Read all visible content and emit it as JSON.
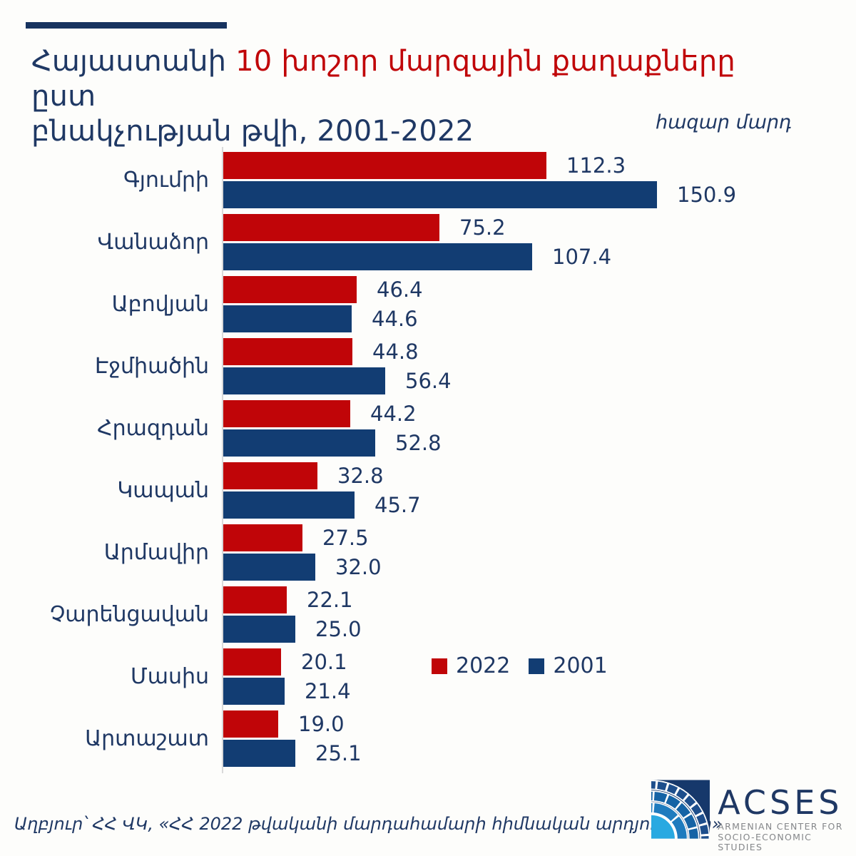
{
  "title": {
    "part1": "Հայաստանի ",
    "part2": "10 խոշոր մարզային քաղաքները ",
    "part3": "ըստ",
    "line2": "բնակչության թվի, 2001-2022"
  },
  "unit_label": "հազար մարդ",
  "legend": {
    "series_2022": "2022",
    "series_2001": "2001"
  },
  "source": "Աղբյուր՝ ՀՀ ՎԿ, «ՀՀ 2022 թվականի մարդահամարի հիմնական արդյունքներ»",
  "logo": {
    "name": "ACSES",
    "subtitle_line1": "ARMENIAN CENTER FOR",
    "subtitle_line2": "SOCIO-ECONOMIC STUDIES"
  },
  "colors": {
    "red": "#C00508",
    "navy_bar": "#123D73",
    "navy_text": "#1F3864",
    "axis_line": "#D9D9D9",
    "background": "#FDFDFB",
    "logo_light_blue": "#29A9E1",
    "logo_mid_blue": "#1E7BBE",
    "logo_deep_blue": "#1563A5",
    "logo_navy": "#16386B",
    "logo_subtitle_gray": "#85878A"
  },
  "chart_data": {
    "type": "bar",
    "orientation": "horizontal",
    "title": "Հայաստանի 10 խոշոր մարզային քաղաքները ըստ բնակչության թվի, 2001-2022",
    "unit": "հազար մարդ",
    "categories": [
      "Գյումրի",
      "Վանաձոր",
      "Աբովյան",
      "Էջմիածին",
      "Հրազդան",
      "Կապան",
      "Արմավիր",
      "Չարենցավան",
      "Մասիս",
      "Արտաշատ"
    ],
    "series": [
      {
        "name": "2022",
        "color": "#C00508",
        "values": [
          112.3,
          75.2,
          46.4,
          44.8,
          44.2,
          32.8,
          27.5,
          22.1,
          20.1,
          19.0
        ]
      },
      {
        "name": "2001",
        "color": "#123D73",
        "values": [
          150.9,
          107.4,
          44.6,
          56.4,
          52.8,
          45.7,
          32.0,
          25.0,
          21.4,
          25.1
        ]
      }
    ],
    "xlim": [
      0,
      160
    ],
    "value_labels": true,
    "grid": false,
    "legend_position": "inside-right"
  }
}
